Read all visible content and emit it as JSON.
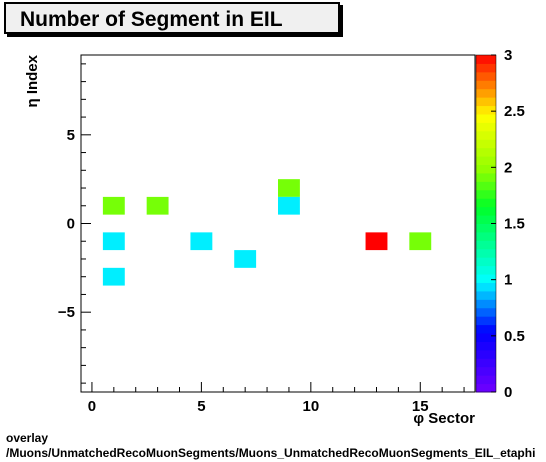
{
  "header": {
    "title": "Number of Segment in EIL"
  },
  "footer": {
    "line1": "overlay",
    "line2": "/Muons/UnmatchedRecoMuonSegments/Muons_UnmatchedRecoMuonSegments_EIL_etaphi"
  },
  "chart_data": {
    "type": "heatmap",
    "title": "Number of Segment in EIL",
    "xlabel": "φ Sector",
    "ylabel": "η Index",
    "xlim": [
      -0.5,
      17.5
    ],
    "ylim": [
      -9.5,
      9.5
    ],
    "x_ticks": [
      0,
      5,
      10,
      15
    ],
    "y_ticks": [
      -5,
      0,
      5
    ],
    "colorbar": {
      "min": 0,
      "max": 3,
      "ticks": [
        "0",
        "0.5",
        "1",
        "1.5",
        "2",
        "2.5",
        "3"
      ]
    },
    "grid": false,
    "cells": [
      {
        "x": 1,
        "y": 1,
        "value": 2
      },
      {
        "x": 3,
        "y": 1,
        "value": 2
      },
      {
        "x": 9,
        "y": 2,
        "value": 2
      },
      {
        "x": 9,
        "y": 1,
        "value": 1
      },
      {
        "x": 1,
        "y": -1,
        "value": 1
      },
      {
        "x": 5,
        "y": -1,
        "value": 1
      },
      {
        "x": 13,
        "y": -1,
        "value": 3
      },
      {
        "x": 15,
        "y": -1,
        "value": 2
      },
      {
        "x": 7,
        "y": -2,
        "value": 1
      },
      {
        "x": 1,
        "y": -3,
        "value": 1
      }
    ]
  }
}
